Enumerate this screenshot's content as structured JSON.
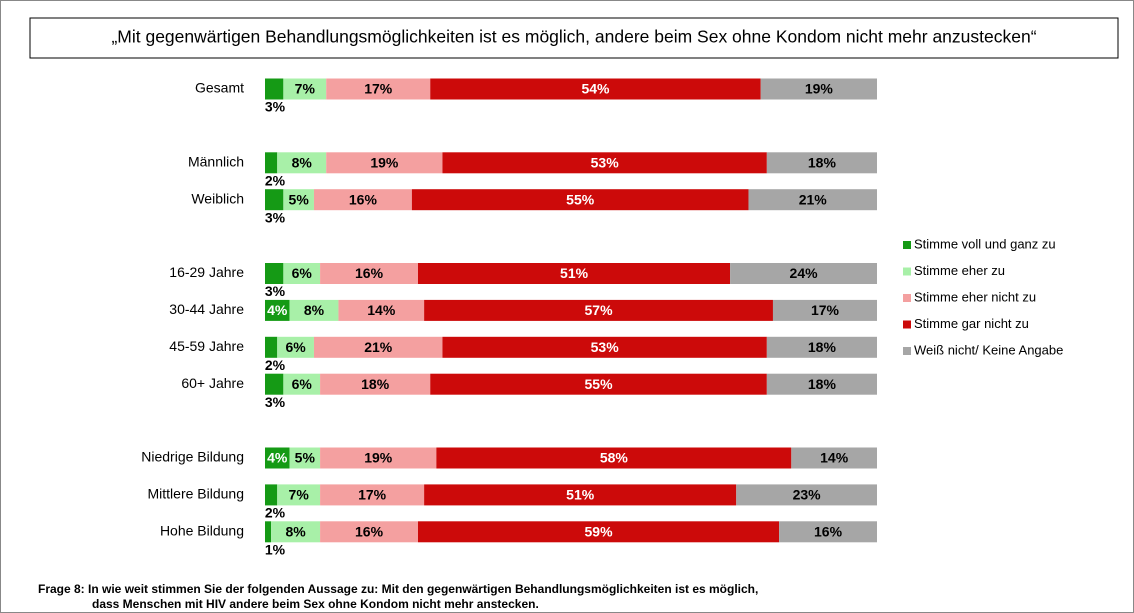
{
  "chart_data": {
    "type": "stacked_barh",
    "title": "„Mit gegenwärtigen Behandlungsmöglichkeiten ist es möglich, andere beim Sex ohne Kondom nicht mehr anzustecken“",
    "categories": [
      "Gesamt",
      null,
      "Männlich",
      "Weiblich",
      null,
      "16-29 Jahre",
      "30-44 Jahre",
      "45-59 Jahre",
      "60+ Jahre",
      null,
      "Niedrige Bildung",
      "Mittlere Bildung",
      "Hohe Bildung"
    ],
    "xlim": [
      0,
      100
    ],
    "series": [
      {
        "name": "Stimme voll und ganz zu",
        "color": "#159a15",
        "values": [
          3,
          null,
          2,
          3,
          null,
          3,
          4,
          2,
          3,
          null,
          4,
          2,
          1
        ],
        "value_labels": [
          "3%",
          null,
          "2%",
          "3%",
          null,
          "3%",
          "4%",
          "2%",
          "3%",
          null,
          "4%",
          "2%",
          "1%"
        ]
      },
      {
        "name": "Stimme eher zu",
        "color": "#a8f0a8",
        "values": [
          7,
          null,
          8,
          5,
          null,
          6,
          8,
          6,
          6,
          null,
          5,
          7,
          8
        ],
        "value_labels": [
          "7%",
          null,
          "8%",
          "5%",
          null,
          "6%",
          "8%",
          "6%",
          "6%",
          null,
          "5%",
          "7%",
          "8%"
        ]
      },
      {
        "name": "Stimme eher nicht zu",
        "color": "#f4a0a0",
        "values": [
          17,
          null,
          19,
          16,
          null,
          16,
          14,
          21,
          18,
          null,
          19,
          17,
          16
        ],
        "value_labels": [
          "17%",
          null,
          "19%",
          "16%",
          null,
          "16%",
          "14%",
          "21%",
          "18%",
          null,
          "19%",
          "17%",
          "16%"
        ]
      },
      {
        "name": "Stimme gar nicht zu",
        "color": "#cc0a0a",
        "values": [
          54,
          null,
          53,
          55,
          null,
          51,
          57,
          53,
          55,
          null,
          58,
          51,
          59
        ],
        "value_labels": [
          "54%",
          null,
          "53%",
          "55%",
          null,
          "51%",
          "57%",
          "53%",
          "55%",
          null,
          "58%",
          "51%",
          "59%"
        ]
      },
      {
        "name": "Weiß nicht/ Keine Angabe",
        "color": "#a6a6a6",
        "values": [
          19,
          null,
          18,
          21,
          null,
          24,
          17,
          18,
          18,
          null,
          14,
          23,
          16
        ],
        "value_labels": [
          "19%",
          null,
          "18%",
          "21%",
          null,
          "24%",
          "17%",
          "18%",
          "18%",
          null,
          "14%",
          "23%",
          "16%"
        ]
      }
    ],
    "footnote": [
      "Frage 8:  In wie weit stimmen Sie der folgenden Aussage  zu: Mit den gegenwärtigen Behandlungsmöglichkeiten ist es möglich,",
      "dass Menschen mit HIV andere beim Sex ohne Kondom nicht mehr anstecken."
    ]
  }
}
